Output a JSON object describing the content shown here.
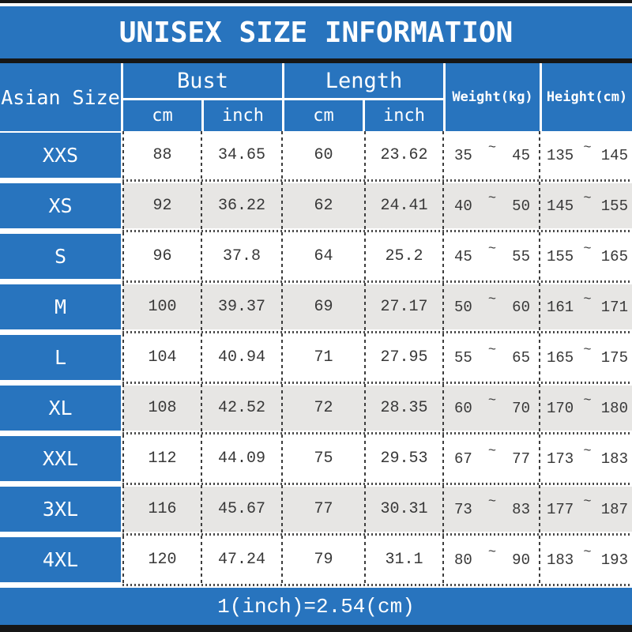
{
  "title": "UNISEX SIZE INFORMATION",
  "footer_note": "1(inch)=2.54(cm)",
  "colors": {
    "header_blue": "#2874BE",
    "row_alt_gray": "#e7e6e4",
    "frame_bar": "#161616",
    "data_text": "#383838"
  },
  "table": {
    "tilde": "~",
    "headers": {
      "size": "Asian Size",
      "bust": "Bust",
      "length": "Length",
      "cm": "cm",
      "inch": "inch",
      "weight": "Weight(kg)",
      "height": "Height(cm)"
    },
    "rows": [
      {
        "size": "XXS",
        "bust_cm": "88",
        "bust_inch": "34.65",
        "length_cm": "60",
        "length_inch": "23.62",
        "weight_low": "35",
        "weight_high": "45",
        "height_low": "135",
        "height_high": "145"
      },
      {
        "size": "XS",
        "bust_cm": "92",
        "bust_inch": "36.22",
        "length_cm": "62",
        "length_inch": "24.41",
        "weight_low": "40",
        "weight_high": "50",
        "height_low": "145",
        "height_high": "155"
      },
      {
        "size": "S",
        "bust_cm": "96",
        "bust_inch": "37.8",
        "length_cm": "64",
        "length_inch": "25.2",
        "weight_low": "45",
        "weight_high": "55",
        "height_low": "155",
        "height_high": "165"
      },
      {
        "size": "M",
        "bust_cm": "100",
        "bust_inch": "39.37",
        "length_cm": "69",
        "length_inch": "27.17",
        "weight_low": "50",
        "weight_high": "60",
        "height_low": "161",
        "height_high": "171"
      },
      {
        "size": "L",
        "bust_cm": "104",
        "bust_inch": "40.94",
        "length_cm": "71",
        "length_inch": "27.95",
        "weight_low": "55",
        "weight_high": "65",
        "height_low": "165",
        "height_high": "175"
      },
      {
        "size": "XL",
        "bust_cm": "108",
        "bust_inch": "42.52",
        "length_cm": "72",
        "length_inch": "28.35",
        "weight_low": "60",
        "weight_high": "70",
        "height_low": "170",
        "height_high": "180"
      },
      {
        "size": "XXL",
        "bust_cm": "112",
        "bust_inch": "44.09",
        "length_cm": "75",
        "length_inch": "29.53",
        "weight_low": "67",
        "weight_high": "77",
        "height_low": "173",
        "height_high": "183"
      },
      {
        "size": "3XL",
        "bust_cm": "116",
        "bust_inch": "45.67",
        "length_cm": "77",
        "length_inch": "30.31",
        "weight_low": "73",
        "weight_high": "83",
        "height_low": "177",
        "height_high": "187"
      },
      {
        "size": "4XL",
        "bust_cm": "120",
        "bust_inch": "47.24",
        "length_cm": "79",
        "length_inch": "31.1",
        "weight_low": "80",
        "weight_high": "90",
        "height_low": "183",
        "height_high": "193"
      }
    ]
  }
}
